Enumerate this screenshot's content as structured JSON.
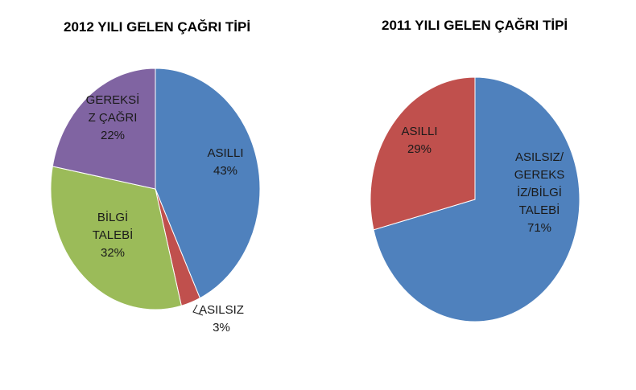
{
  "chart_data": [
    {
      "type": "pie",
      "title": "2012 YILI GELEN ÇAĞRI TİPİ",
      "slices": [
        {
          "label_lines": [
            "ASILLI",
            "43%"
          ],
          "value": 43,
          "color": "#4F81BD"
        },
        {
          "label_lines": [
            "ASILSIZ",
            "3%"
          ],
          "value": 3,
          "color": "#C0504D"
        },
        {
          "label_lines": [
            "BİLGİ",
            "TALEBİ",
            "32%"
          ],
          "value": 32,
          "color": "#9BBB59"
        },
        {
          "label_lines": [
            "GEREKSİ",
            "Z ÇAĞRI",
            "22%"
          ],
          "value": 22,
          "color": "#8064A2"
        }
      ]
    },
    {
      "type": "pie",
      "title": "2011 YILI GELEN ÇAĞRI TİPİ",
      "slices": [
        {
          "label_lines": [
            "ASILSIZ/",
            "GEREKS",
            "İZ/BİLGİ",
            "TALEBİ",
            "71%"
          ],
          "value": 71,
          "color": "#4F81BD"
        },
        {
          "label_lines": [
            "ASILLI",
            "29%"
          ],
          "value": 29,
          "color": "#C0504D"
        }
      ]
    }
  ]
}
